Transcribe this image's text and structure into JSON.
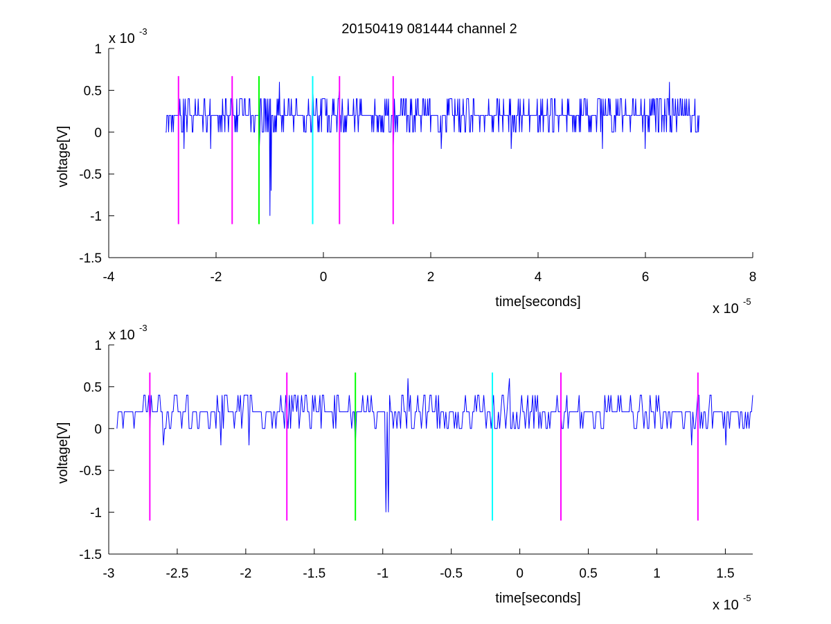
{
  "figure": {
    "title": "20150419 081444 channel 2"
  },
  "colors": {
    "signal": "#0000ff",
    "magenta": "#ff00ff",
    "green": "#00ff00",
    "cyan": "#00ffff",
    "axis": "#000000"
  },
  "chart_data": [
    {
      "type": "line",
      "title": "20150419 081444 channel 2",
      "xlabel": "time[seconds]",
      "ylabel": "voltage[V]",
      "x_exponent_label": "x 10",
      "x_exponent": "-5",
      "y_exponent_label": "x 10",
      "y_exponent": "-3",
      "xlim": [
        -4,
        8
      ],
      "ylim": [
        -1.5,
        1
      ],
      "x_ticks": [
        -4,
        -2,
        0,
        2,
        4,
        6,
        8
      ],
      "x_tick_labels": [
        "-4",
        "-2",
        "0",
        "2",
        "4",
        "6",
        "8"
      ],
      "y_ticks": [
        -1.5,
        -1,
        -0.5,
        0,
        0.5,
        1
      ],
      "y_tick_labels": [
        "-1.5",
        "-1",
        "-0.5",
        "0",
        "0.5",
        "1"
      ],
      "grid": false,
      "signal": {
        "x_range": [
          -2.94,
          7.0
        ],
        "baseline_levels": [
          0,
          0.2,
          0.4
        ],
        "spikes": [
          {
            "x": -2.6,
            "y": -0.2
          },
          {
            "x": -2.1,
            "y": -0.2
          },
          {
            "x": -1.2,
            "y": -0.2
          },
          {
            "x": -1.0,
            "y": -1.0
          },
          {
            "x": -0.97,
            "y": -0.7
          },
          {
            "x": -0.82,
            "y": 0.6
          },
          {
            "x": -0.2,
            "y": 0.6
          },
          {
            "x": 0.3,
            "y": 0.5
          },
          {
            "x": 1.3,
            "y": -0.2
          },
          {
            "x": 2.2,
            "y": -0.2
          },
          {
            "x": 3.5,
            "y": 0.5
          },
          {
            "x": 3.5,
            "y": -0.2
          },
          {
            "x": 5.2,
            "y": 0.6
          },
          {
            "x": 5.2,
            "y": -0.2
          },
          {
            "x": 6.0,
            "y": -0.2
          },
          {
            "x": 6.45,
            "y": 0.6
          }
        ]
      },
      "markers": [
        {
          "x": -2.7,
          "color": "magenta",
          "ymin": -1.1,
          "ymax": 0.67
        },
        {
          "x": -1.7,
          "color": "magenta",
          "ymin": -1.1,
          "ymax": 0.67
        },
        {
          "x": -1.2,
          "color": "green",
          "ymin": -1.1,
          "ymax": 0.67
        },
        {
          "x": -0.2,
          "color": "cyan",
          "ymin": -1.1,
          "ymax": 0.67
        },
        {
          "x": 0.3,
          "color": "magenta",
          "ymin": -1.1,
          "ymax": 0.67
        },
        {
          "x": 1.3,
          "color": "magenta",
          "ymin": -1.1,
          "ymax": 0.67
        }
      ]
    },
    {
      "type": "line",
      "title": "",
      "xlabel": "time[seconds]",
      "ylabel": "voltage[V]",
      "x_exponent_label": "x 10",
      "x_exponent": "-5",
      "y_exponent_label": "x 10",
      "y_exponent": "-3",
      "xlim": [
        -3.0,
        1.7
      ],
      "ylim": [
        -1.5,
        1
      ],
      "x_ticks": [
        -3,
        -2.5,
        -2,
        -1.5,
        -1,
        -0.5,
        0,
        0.5,
        1,
        1.5
      ],
      "x_tick_labels": [
        "-3",
        "-2.5",
        "-2",
        "-1.5",
        "-1",
        "-0.5",
        "0",
        "0.5",
        "1",
        "1.5"
      ],
      "y_ticks": [
        -1.5,
        -1,
        -0.5,
        0,
        0.5,
        1
      ],
      "y_tick_labels": [
        "-1.5",
        "-1",
        "-0.5",
        "0",
        "0.5",
        "1"
      ],
      "grid": false,
      "signal": {
        "x_range": [
          -2.94,
          1.7
        ],
        "baseline_levels": [
          0,
          0.2,
          0.4
        ],
        "spikes": [
          {
            "x": -2.6,
            "y": -0.2
          },
          {
            "x": -2.18,
            "y": -0.2
          },
          {
            "x": -1.98,
            "y": -0.2
          },
          {
            "x": -1.2,
            "y": -0.2
          },
          {
            "x": -0.98,
            "y": -1.0
          },
          {
            "x": -0.96,
            "y": -1.0
          },
          {
            "x": -0.82,
            "y": 0.6
          },
          {
            "x": -0.08,
            "y": 0.6
          },
          {
            "x": -0.4,
            "y": 0.4
          },
          {
            "x": 1.25,
            "y": -0.2
          },
          {
            "x": 1.5,
            "y": -0.2
          }
        ]
      },
      "markers": [
        {
          "x": -2.7,
          "color": "magenta",
          "ymin": -1.1,
          "ymax": 0.67
        },
        {
          "x": -1.7,
          "color": "magenta",
          "ymin": -1.1,
          "ymax": 0.67
        },
        {
          "x": -1.2,
          "color": "green",
          "ymin": -1.1,
          "ymax": 0.67
        },
        {
          "x": -0.2,
          "color": "cyan",
          "ymin": -1.1,
          "ymax": 0.67
        },
        {
          "x": 0.3,
          "color": "magenta",
          "ymin": -1.1,
          "ymax": 0.67
        },
        {
          "x": 1.3,
          "color": "magenta",
          "ymin": -1.1,
          "ymax": 0.67
        }
      ]
    }
  ]
}
